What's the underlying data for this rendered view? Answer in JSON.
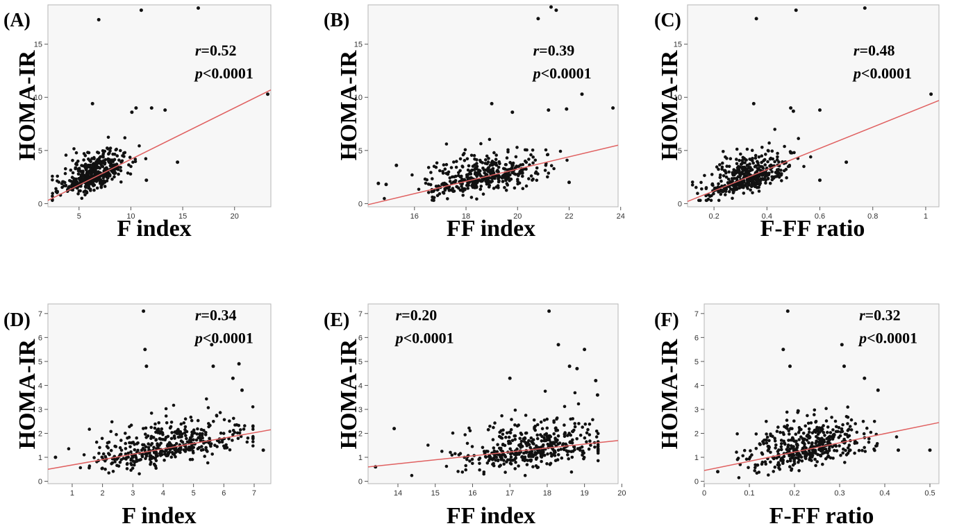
{
  "chart_data": [
    {
      "type": "scatter",
      "panel_label": "(A)",
      "xlabel": "F index",
      "ylabel": "HOMA-IR",
      "xlim": [
        2,
        23.5
      ],
      "ylim": [
        -0.3,
        18.7
      ],
      "xticks": [
        5,
        10,
        15,
        20
      ],
      "yticks": [
        0,
        5,
        10,
        15
      ],
      "stat_r_symbol": "r",
      "stat_r_value": "=0.52",
      "stat_p_symbol": "p",
      "stat_p_value": "<0.0001",
      "stat_pos": "top-right",
      "fit_line": {
        "x": [
          2,
          23.5
        ],
        "y": [
          0.3,
          10.7
        ]
      },
      "outliers": [
        [
          6.9,
          17.3
        ],
        [
          11.0,
          18.2
        ],
        [
          16.5,
          18.4
        ],
        [
          6.3,
          9.4
        ],
        [
          10.1,
          8.6
        ],
        [
          10.5,
          9.0
        ],
        [
          12.0,
          9.0
        ],
        [
          13.3,
          8.8
        ],
        [
          23.2,
          10.3
        ],
        [
          14.5,
          3.9
        ],
        [
          11.5,
          2.2
        ]
      ],
      "cluster": {
        "n": 420,
        "x_mean": 6.2,
        "x_sd": 1.6,
        "y_at_x": [
          [
            3,
            1.5
          ],
          [
            9,
            3.6
          ]
        ],
        "y_sd": 1.0,
        "y_min": 0.3
      }
    },
    {
      "type": "scatter",
      "panel_label": "(B)",
      "xlabel": "FF index",
      "ylabel": "HOMA-IR",
      "xlim": [
        14.2,
        23.9
      ],
      "ylim": [
        -0.3,
        18.7
      ],
      "xticks": [
        16,
        18,
        20,
        22,
        24
      ],
      "yticks": [
        0,
        5,
        10,
        15
      ],
      "stat_r_symbol": "r",
      "stat_r_value": "=0.39",
      "stat_p_symbol": "p",
      "stat_p_value": "<0.0001",
      "stat_pos": "top-right",
      "fit_line": {
        "x": [
          14.2,
          23.9
        ],
        "y": [
          -0.1,
          5.5
        ]
      },
      "outliers": [
        [
          20.8,
          17.4
        ],
        [
          21.3,
          18.5
        ],
        [
          21.5,
          18.2
        ],
        [
          22.5,
          10.3
        ],
        [
          23.7,
          9.0
        ],
        [
          19.0,
          9.4
        ],
        [
          19.8,
          8.6
        ],
        [
          21.2,
          8.8
        ],
        [
          21.9,
          8.9
        ],
        [
          14.6,
          1.9
        ],
        [
          14.9,
          1.8
        ],
        [
          15.3,
          3.6
        ],
        [
          22.0,
          2.0
        ]
      ],
      "cluster": {
        "n": 420,
        "x_mean": 18.6,
        "x_sd": 1.2,
        "y_at_x": [
          [
            16,
            1.4
          ],
          [
            21,
            3.4
          ]
        ],
        "y_sd": 1.0,
        "y_min": 0.3
      }
    },
    {
      "type": "scatter",
      "panel_label": "(C)",
      "xlabel": "F-FF ratio",
      "ylabel": "HOMA-IR",
      "xlim": [
        0.1,
        1.05
      ],
      "ylim": [
        -0.3,
        18.7
      ],
      "xticks": [
        0.2,
        0.4,
        0.6,
        0.8,
        1
      ],
      "yticks": [
        0,
        5,
        10,
        15
      ],
      "stat_r_symbol": "r",
      "stat_r_value": "=0.48",
      "stat_p_symbol": "p",
      "stat_p_value": "<0.0001",
      "stat_pos": "top-right",
      "fit_line": {
        "x": [
          0.1,
          1.05
        ],
        "y": [
          0.2,
          9.7
        ]
      },
      "outliers": [
        [
          0.36,
          17.4
        ],
        [
          0.51,
          18.2
        ],
        [
          0.77,
          18.4
        ],
        [
          0.35,
          9.4
        ],
        [
          0.49,
          9.0
        ],
        [
          0.5,
          8.7
        ],
        [
          0.6,
          8.8
        ],
        [
          1.02,
          10.3
        ],
        [
          0.7,
          3.9
        ],
        [
          0.6,
          2.2
        ]
      ],
      "cluster": {
        "n": 420,
        "x_mean": 0.33,
        "x_sd": 0.075,
        "y_at_x": [
          [
            0.2,
            1.4
          ],
          [
            0.5,
            3.8
          ]
        ],
        "y_sd": 1.0,
        "y_min": 0.3
      }
    },
    {
      "type": "scatter",
      "panel_label": "(D)",
      "xlabel": "F index",
      "ylabel": "HOMA-IR",
      "xlim": [
        0.2,
        7.55
      ],
      "ylim": [
        -0.1,
        7.4
      ],
      "xticks": [
        1,
        2,
        3,
        4,
        5,
        6,
        7
      ],
      "yticks": [
        0,
        1,
        2,
        3,
        4,
        5,
        6,
        7
      ],
      "stat_r_symbol": "r",
      "stat_r_value": "=0.34",
      "stat_p_symbol": "p",
      "stat_p_value": "<0.0001",
      "stat_pos": "top-right",
      "fit_line": {
        "x": [
          0.2,
          7.55
        ],
        "y": [
          0.5,
          2.15
        ]
      },
      "outliers": [
        [
          3.35,
          7.1
        ],
        [
          3.4,
          5.5
        ],
        [
          3.45,
          4.8
        ],
        [
          5.6,
          5.7
        ],
        [
          5.65,
          4.8
        ],
        [
          6.3,
          4.3
        ],
        [
          6.6,
          3.8
        ],
        [
          7.3,
          1.3
        ],
        [
          0.45,
          1.0
        ],
        [
          6.5,
          4.9
        ]
      ],
      "cluster": {
        "n": 430,
        "x_mean": 4.2,
        "x_sd": 1.25,
        "y_at_x": [
          [
            1,
            0.75
          ],
          [
            6.5,
            1.95
          ]
        ],
        "y_sd": 0.55,
        "y_min": 0.15
      }
    },
    {
      "type": "scatter",
      "panel_label": "(E)",
      "xlabel": "FF index",
      "ylabel": "HOMA-IR",
      "xlim": [
        13.2,
        19.9
      ],
      "ylim": [
        -0.1,
        7.4
      ],
      "xticks": [
        14,
        15,
        16,
        17,
        18,
        19,
        20
      ],
      "yticks": [
        0,
        1,
        2,
        3,
        4,
        5,
        6,
        7
      ],
      "stat_r_symbol": "r",
      "stat_r_value": "=0.20",
      "stat_p_symbol": "p",
      "stat_p_value": "<0.0001",
      "stat_pos": "top-left",
      "fit_line": {
        "x": [
          13.2,
          19.9
        ],
        "y": [
          0.6,
          1.7
        ]
      },
      "outliers": [
        [
          18.05,
          7.1
        ],
        [
          18.3,
          5.7
        ],
        [
          18.6,
          4.8
        ],
        [
          18.8,
          4.7
        ],
        [
          19.0,
          5.5
        ],
        [
          19.3,
          4.2
        ],
        [
          17.0,
          4.3
        ],
        [
          13.9,
          2.2
        ],
        [
          13.4,
          0.6
        ],
        [
          19.35,
          3.6
        ]
      ],
      "cluster": {
        "n": 430,
        "x_mean": 17.6,
        "x_sd": 0.95,
        "y_at_x": [
          [
            15,
            0.95
          ],
          [
            19,
            1.55
          ]
        ],
        "y_sd": 0.6,
        "y_min": 0.2
      }
    },
    {
      "type": "scatter",
      "panel_label": "(F)",
      "xlabel": "F-FF ratio",
      "ylabel": "HOMA-IR",
      "xlim": [
        0,
        0.52
      ],
      "ylim": [
        -0.1,
        7.4
      ],
      "xticks": [
        0,
        0.1,
        0.2,
        0.3,
        0.4,
        0.5
      ],
      "yticks": [
        0,
        1,
        2,
        3,
        4,
        5,
        6,
        7
      ],
      "stat_r_symbol": "r",
      "stat_r_value": "=0.32",
      "stat_p_symbol": "p",
      "stat_p_value": "<0.0001",
      "stat_pos": "top-right",
      "fit_line": {
        "x": [
          0,
          0.52
        ],
        "y": [
          0.45,
          2.45
        ]
      },
      "outliers": [
        [
          0.185,
          7.1
        ],
        [
          0.175,
          5.5
        ],
        [
          0.19,
          4.8
        ],
        [
          0.305,
          5.7
        ],
        [
          0.31,
          4.8
        ],
        [
          0.355,
          4.3
        ],
        [
          0.385,
          3.8
        ],
        [
          0.5,
          1.3
        ],
        [
          0.03,
          0.4
        ],
        [
          0.43,
          1.3
        ]
      ],
      "cluster": {
        "n": 430,
        "x_mean": 0.23,
        "x_sd": 0.065,
        "y_at_x": [
          [
            0.05,
            0.7
          ],
          [
            0.4,
            2.0
          ]
        ],
        "y_sd": 0.55,
        "y_min": 0.15
      }
    }
  ]
}
